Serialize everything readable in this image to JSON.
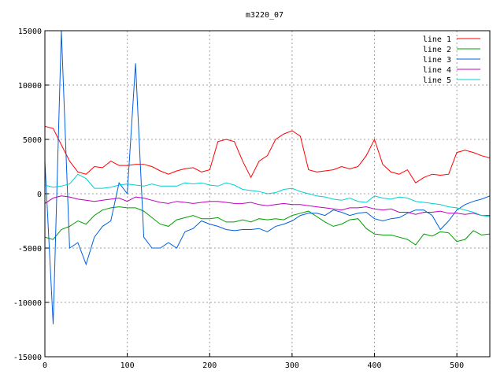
{
  "chart_data": {
    "type": "line",
    "title": "m3220_07",
    "xlabel": "",
    "ylabel": "",
    "xlim": [
      0,
      540
    ],
    "ylim": [
      -15000,
      15000
    ],
    "x_ticks": [
      0,
      100,
      200,
      300,
      400,
      500
    ],
    "y_ticks": [
      -15000,
      -10000,
      -5000,
      0,
      5000,
      10000,
      15000
    ],
    "grid": true,
    "legend": "top-right",
    "x": [
      0,
      10,
      20,
      30,
      40,
      50,
      60,
      70,
      80,
      90,
      100,
      110,
      120,
      130,
      140,
      150,
      160,
      170,
      180,
      190,
      200,
      210,
      220,
      230,
      240,
      250,
      260,
      270,
      280,
      290,
      300,
      310,
      320,
      330,
      340,
      350,
      360,
      370,
      380,
      390,
      400,
      410,
      420,
      430,
      440,
      450,
      460,
      470,
      480,
      490,
      500,
      510,
      520,
      530,
      540
    ],
    "series": [
      {
        "name": "line 1",
        "color": "#ff0000",
        "values": [
          6200,
          6000,
          4500,
          3000,
          2000,
          1800,
          2500,
          2400,
          3000,
          2600,
          2600,
          2700,
          2700,
          2500,
          2100,
          1800,
          2100,
          2300,
          2400,
          2000,
          2200,
          4800,
          5000,
          4800,
          3000,
          1500,
          3000,
          3500,
          5000,
          5500,
          5800,
          5300,
          2200,
          2000,
          2100,
          2200,
          2500,
          2300,
          2500,
          3500,
          5000,
          2700,
          2000,
          1800,
          2200,
          1000,
          1500,
          1800,
          1700,
          1800,
          3800,
          4000,
          3800,
          3500,
          3300
        ]
      },
      {
        "name": "line 2",
        "color": "#00a000",
        "values": [
          -4000,
          -4200,
          -3300,
          -3000,
          -2500,
          -2800,
          -2000,
          -1500,
          -1300,
          -1200,
          -1300,
          -1300,
          -1600,
          -2200,
          -2800,
          -3000,
          -2400,
          -2200,
          -2000,
          -2300,
          -2300,
          -2200,
          -2600,
          -2600,
          -2400,
          -2600,
          -2300,
          -2400,
          -2300,
          -2400,
          -2000,
          -1800,
          -1600,
          -2100,
          -2600,
          -3000,
          -2800,
          -2400,
          -2300,
          -3200,
          -3700,
          -3800,
          -3800,
          -4000,
          -4200,
          -4700,
          -3700,
          -3900,
          -3500,
          -3600,
          -4400,
          -4200,
          -3400,
          -3800,
          -3700
        ]
      },
      {
        "name": "line 3",
        "color": "#0060e0",
        "values": [
          3000,
          -12000,
          15000,
          -5000,
          -4500,
          -6500,
          -4000,
          -3000,
          -2500,
          1000,
          0,
          12000,
          -4000,
          -5000,
          -5000,
          -4500,
          -5000,
          -3500,
          -3200,
          -2500,
          -2800,
          -3000,
          -3300,
          -3400,
          -3300,
          -3300,
          -3200,
          -3500,
          -3000,
          -2800,
          -2500,
          -2000,
          -1800,
          -1800,
          -2000,
          -1500,
          -1700,
          -2000,
          -1800,
          -1700,
          -2300,
          -2500,
          -2300,
          -2200,
          -1800,
          -1500,
          -1500,
          -2000,
          -3300,
          -2500,
          -1500,
          -1000,
          -700,
          -500,
          -200
        ]
      },
      {
        "name": "line 4",
        "color": "#c000c0",
        "values": [
          -900,
          -400,
          -200,
          -300,
          -500,
          -600,
          -700,
          -600,
          -500,
          -400,
          -700,
          -300,
          -400,
          -600,
          -800,
          -900,
          -700,
          -800,
          -900,
          -800,
          -700,
          -700,
          -800,
          -900,
          -900,
          -800,
          -1000,
          -1100,
          -1000,
          -900,
          -1000,
          -1000,
          -1100,
          -1200,
          -1300,
          -1400,
          -1500,
          -1300,
          -1300,
          -1200,
          -1400,
          -1500,
          -1400,
          -1700,
          -1700,
          -1900,
          -1700,
          -1700,
          -1600,
          -1800,
          -1800,
          -1900,
          -1800,
          -2000,
          -2000
        ]
      },
      {
        "name": "line 5",
        "color": "#00d0d0",
        "values": [
          800,
          600,
          700,
          900,
          1800,
          1400,
          500,
          500,
          600,
          800,
          900,
          800,
          700,
          900,
          700,
          700,
          700,
          1000,
          900,
          1000,
          800,
          700,
          1000,
          800,
          400,
          300,
          200,
          0,
          100,
          400,
          500,
          200,
          0,
          -200,
          -300,
          -500,
          -600,
          -400,
          -700,
          -800,
          -200,
          -400,
          -500,
          -300,
          -400,
          -700,
          -800,
          -900,
          -1000,
          -1200,
          -1300,
          -1500,
          -1700,
          -2000,
          -2100
        ]
      }
    ]
  }
}
